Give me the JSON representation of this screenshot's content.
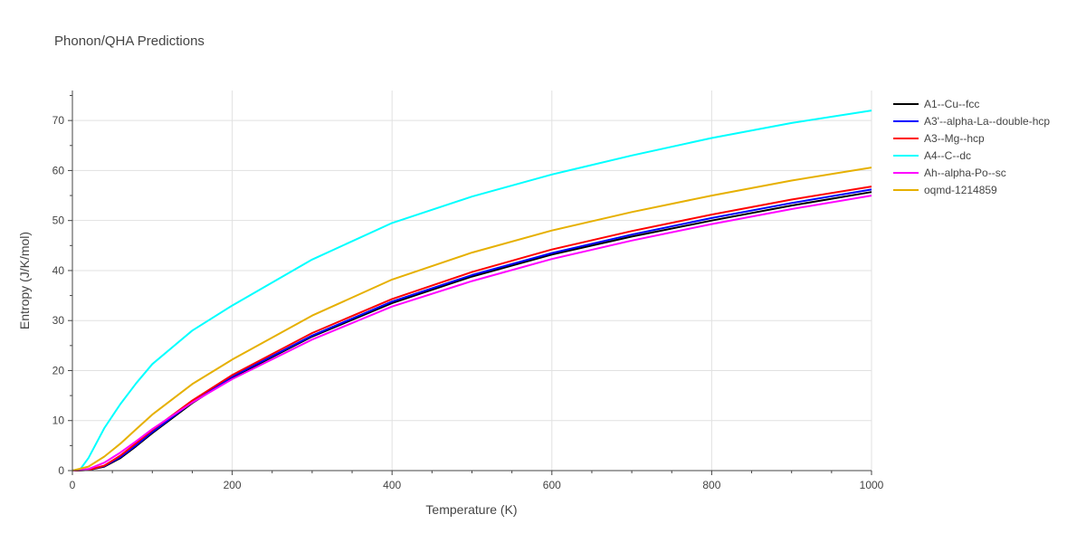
{
  "chart_data": {
    "type": "line",
    "title": "Phonon/QHA Predictions",
    "xlabel": "Temperature (K)",
    "ylabel": "Entropy (J/K/mol)",
    "xlim": [
      0,
      1000
    ],
    "ylim": [
      0,
      76
    ],
    "x_ticks": [
      0,
      200,
      400,
      600,
      800,
      1000
    ],
    "y_ticks": [
      0,
      10,
      20,
      30,
      40,
      50,
      60,
      70
    ],
    "grid": true,
    "legend_position": "right",
    "series": [
      {
        "name": "A1--Cu--fcc",
        "color": "#000000",
        "x": [
          0,
          20,
          40,
          60,
          80,
          100,
          150,
          200,
          300,
          400,
          500,
          600,
          700,
          800,
          900,
          1000
        ],
        "y": [
          0,
          0.1,
          0.8,
          2.5,
          4.9,
          7.5,
          13.5,
          18.6,
          26.8,
          33.5,
          38.8,
          43.2,
          46.8,
          50.0,
          53.0,
          55.7
        ]
      },
      {
        "name": "A3'--alpha-La--double-hcp",
        "color": "#0000ff",
        "x": [
          0,
          20,
          40,
          60,
          80,
          100,
          150,
          200,
          300,
          400,
          500,
          600,
          700,
          800,
          900,
          1000
        ],
        "y": [
          0,
          0.1,
          0.9,
          2.7,
          5.1,
          7.7,
          13.7,
          18.8,
          27.0,
          33.8,
          39.1,
          43.5,
          47.2,
          50.5,
          53.5,
          56.2
        ]
      },
      {
        "name": "A3--Mg--hcp",
        "color": "#ff0000",
        "x": [
          0,
          20,
          40,
          60,
          80,
          100,
          150,
          200,
          300,
          400,
          500,
          600,
          700,
          800,
          900,
          1000
        ],
        "y": [
          0,
          0.1,
          1.0,
          3.0,
          5.5,
          8.1,
          14.0,
          19.1,
          27.5,
          34.3,
          39.7,
          44.2,
          47.9,
          51.2,
          54.2,
          56.8
        ]
      },
      {
        "name": "A4--C--dc",
        "color": "#00ffff",
        "x": [
          0,
          10,
          20,
          40,
          60,
          80,
          100,
          150,
          200,
          300,
          400,
          500,
          600,
          700,
          800,
          900,
          1000
        ],
        "y": [
          0,
          0.3,
          2.5,
          8.5,
          13.3,
          17.5,
          21.3,
          28.0,
          33.0,
          42.2,
          49.5,
          54.8,
          59.2,
          63.0,
          66.5,
          69.5,
          72.0
        ]
      },
      {
        "name": "Ah--alpha-Po--sc",
        "color": "#ff00ff",
        "x": [
          0,
          20,
          40,
          60,
          80,
          100,
          150,
          200,
          300,
          400,
          500,
          600,
          700,
          800,
          900,
          1000
        ],
        "y": [
          0,
          0.3,
          1.6,
          3.6,
          5.9,
          8.3,
          13.6,
          18.3,
          26.2,
          32.8,
          37.9,
          42.3,
          46.0,
          49.3,
          52.3,
          55.0
        ]
      },
      {
        "name": "oqmd-1214859",
        "color": "#e6b000",
        "x": [
          0,
          20,
          40,
          60,
          80,
          100,
          150,
          200,
          300,
          400,
          500,
          600,
          700,
          800,
          900,
          1000
        ],
        "y": [
          0,
          0.8,
          2.8,
          5.4,
          8.3,
          11.2,
          17.3,
          22.2,
          31.0,
          38.2,
          43.6,
          48.0,
          51.7,
          55.0,
          58.0,
          60.6
        ]
      }
    ]
  }
}
